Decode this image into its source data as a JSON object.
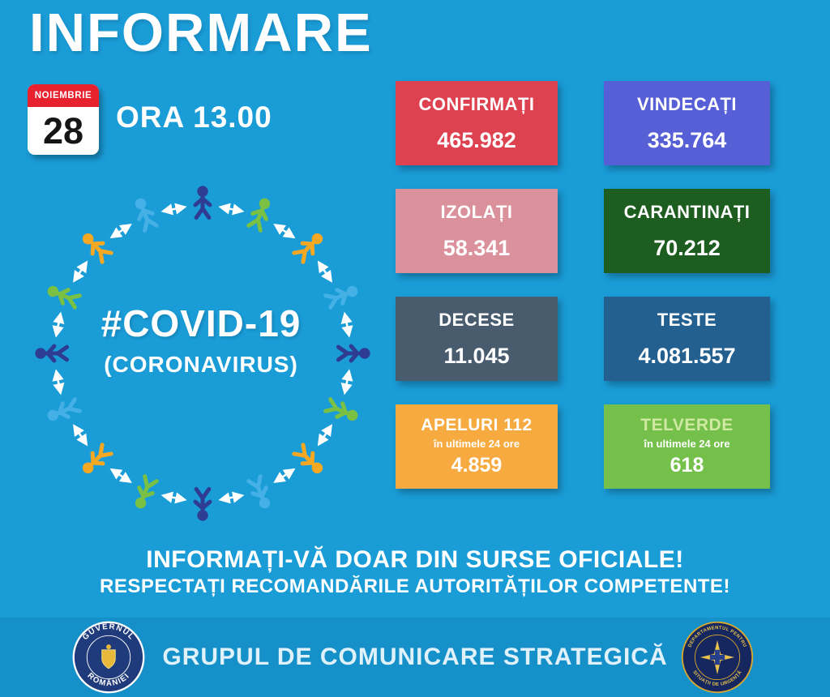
{
  "header": {
    "title": "INFORMARE",
    "calendar": {
      "month": "NOIEMBRIE",
      "day": "28"
    },
    "time_label": "ORA 13.00"
  },
  "diagram": {
    "center_title": "#COVID-19",
    "center_subtitle": "(CORONAVIRUS)",
    "figure_count": 16,
    "figure_colors": [
      "#2E3D92",
      "#7AC143",
      "#F7A823",
      "#45B0E5"
    ],
    "arrow_color": "#FFFFFF"
  },
  "stats": [
    {
      "id": "confirmati",
      "label": "CONFIRMAȚI",
      "value": "465.982",
      "bg": "#DE4150"
    },
    {
      "id": "vindecati",
      "label": "VINDECAȚI",
      "value": "335.764",
      "bg": "#575FD6"
    },
    {
      "id": "izolati",
      "label": "IZOLAȚI",
      "value": "58.341",
      "bg": "#DA919B"
    },
    {
      "id": "carantinati",
      "label": "CARANTINAȚI",
      "value": "70.212",
      "bg": "#1D5D20"
    },
    {
      "id": "decese",
      "label": "DECESE",
      "value": "11.045",
      "bg": "#485C6E"
    },
    {
      "id": "teste",
      "label": "TESTE",
      "value": "4.081.557",
      "bg": "#23608F"
    },
    {
      "id": "apeluri-112",
      "label": "APELURI 112",
      "sublabel": "în ultimele 24 ore",
      "value": "4.859",
      "bg": "#F6AA3F"
    },
    {
      "id": "telverde",
      "label": "TELVERDE",
      "sublabel": "în ultimele 24 ore",
      "value": "618",
      "bg": "#74C04A",
      "label_color": "#CFE8A2"
    }
  ],
  "notice": {
    "line1": "INFORMAȚI-VĂ DOAR DIN SURSE OFICIALE!",
    "line2": "RESPECTAȚI RECOMANDĂRILE AUTORITĂȚILOR COMPETENTE!"
  },
  "footer": {
    "center_text": "GRUPUL DE COMUNICARE STRATEGICĂ",
    "gov_seal": {
      "top_text": "GUVERNUL",
      "bottom_text": "ROMÂNIEI"
    },
    "dsu_seal": {
      "top_text": "DEPARTAMENTUL PENTRU",
      "bottom_text": "SITUAȚII DE URGENȚĂ"
    }
  }
}
